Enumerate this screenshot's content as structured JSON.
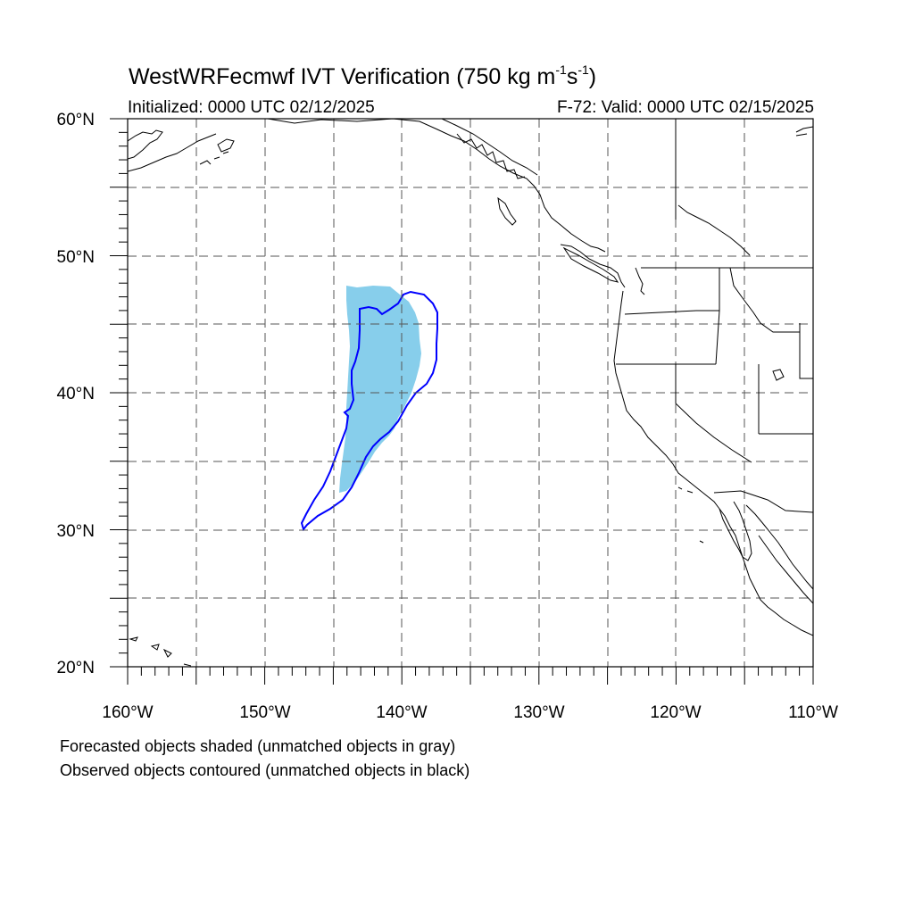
{
  "header": {
    "title_prefix": "WestWRFecmwf IVT Verification (750 kg m",
    "title_exp1": "-1",
    "title_mid": "s",
    "title_exp2": "-1",
    "title_suffix": ")",
    "initialized": "Initialized: 0000 UTC 02/12/2025",
    "valid": "F-72: Valid: 0000 UTC 02/15/2025"
  },
  "map": {
    "lon_range": [
      -160,
      -110
    ],
    "lat_range": [
      20,
      60
    ],
    "lon_tick_labels": [
      "160°W",
      "150°W",
      "140°W",
      "130°W",
      "120°W",
      "110°W"
    ],
    "lat_tick_labels": [
      "60°N",
      "50°N",
      "40°N",
      "30°N",
      "20°N"
    ],
    "gridlines": "dashed every 5°",
    "forecast_fill_color": "#87ceeb",
    "observed_contour_color": "#0000ff",
    "coastline_color": "#000000"
  },
  "notes": {
    "line1": "Forecasted objects shaded (unmatched objects in gray)",
    "line2": "Observed objects contoured (unmatched objects in black)"
  }
}
